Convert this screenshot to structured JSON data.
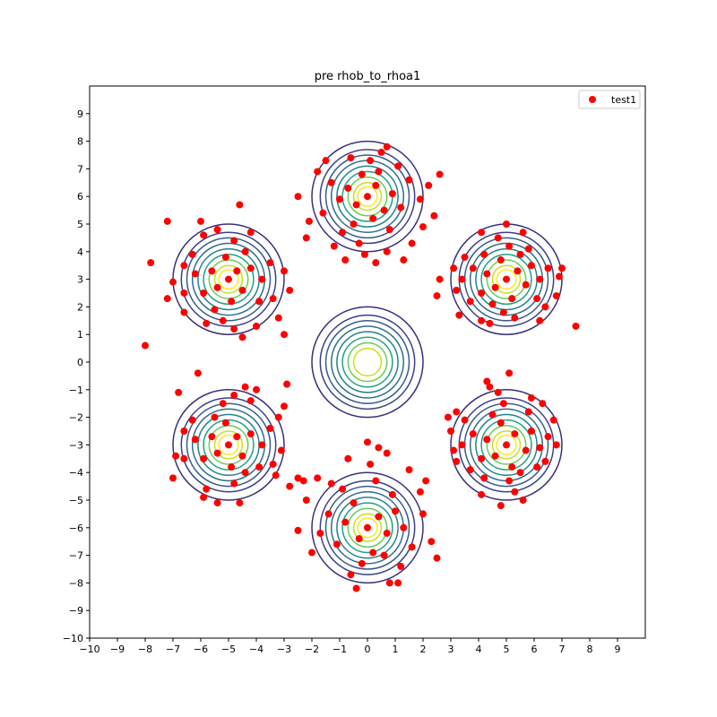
{
  "chart_data": {
    "type": "scatter",
    "title": "pre rhob_to_rhoa1",
    "xlim": [
      -10,
      10
    ],
    "ylim": [
      -10,
      10
    ],
    "x_ticks": [
      -10,
      -9,
      -8,
      -7,
      -6,
      -5,
      -4,
      -3,
      -2,
      -1,
      0,
      1,
      2,
      3,
      4,
      5,
      6,
      7,
      8,
      9
    ],
    "y_ticks": [
      -10,
      -9,
      -8,
      -7,
      -6,
      -5,
      -4,
      -3,
      -2,
      -1,
      0,
      1,
      2,
      3,
      4,
      5,
      6,
      7,
      8,
      9
    ],
    "grid": false,
    "legend": {
      "placement": "top-right",
      "entries": [
        "test1"
      ]
    },
    "contour_sets": [
      {
        "center": [
          0,
          0
        ],
        "radii": [
          2.0,
          1.7,
          1.5,
          1.3,
          1.1,
          0.9,
          0.7,
          0.5
        ],
        "colors": [
          "#3b2f7a",
          "#3a3f8a",
          "#355a8c",
          "#2f6e8c",
          "#26828e",
          "#1fa187",
          "#6ccd5a",
          "#c8e020"
        ]
      },
      {
        "center": [
          0,
          6
        ],
        "radii": [
          2.0,
          1.7,
          1.5,
          1.3,
          1.1,
          0.9,
          0.7,
          0.5,
          0.35
        ],
        "colors": [
          "#3b2f7a",
          "#3a3f8a",
          "#355a8c",
          "#2f6e8c",
          "#26828e",
          "#1fa187",
          "#6ccd5a",
          "#c8e020",
          "#fde725"
        ]
      },
      {
        "center": [
          0,
          -6
        ],
        "radii": [
          2.0,
          1.7,
          1.5,
          1.3,
          1.1,
          0.9,
          0.7,
          0.5,
          0.35
        ],
        "colors": [
          "#3b2f7a",
          "#3a3f8a",
          "#355a8c",
          "#2f6e8c",
          "#26828e",
          "#1fa187",
          "#6ccd5a",
          "#c8e020",
          "#fde725"
        ]
      },
      {
        "center": [
          5,
          3
        ],
        "radii": [
          2.0,
          1.7,
          1.5,
          1.3,
          1.1,
          0.9,
          0.7,
          0.5,
          0.35
        ],
        "colors": [
          "#3b2f7a",
          "#3a3f8a",
          "#355a8c",
          "#2f6e8c",
          "#26828e",
          "#1fa187",
          "#6ccd5a",
          "#c8e020",
          "#fde725"
        ]
      },
      {
        "center": [
          5,
          -3
        ],
        "radii": [
          2.0,
          1.7,
          1.5,
          1.3,
          1.1,
          0.9,
          0.7,
          0.5,
          0.35
        ],
        "colors": [
          "#3b2f7a",
          "#3a3f8a",
          "#355a8c",
          "#2f6e8c",
          "#26828e",
          "#1fa187",
          "#6ccd5a",
          "#c8e020",
          "#fde725"
        ]
      },
      {
        "center": [
          -5,
          3
        ],
        "radii": [
          2.0,
          1.7,
          1.5,
          1.3,
          1.1,
          0.9,
          0.7,
          0.5,
          0.35
        ],
        "colors": [
          "#3b2f7a",
          "#3a3f8a",
          "#355a8c",
          "#2f6e8c",
          "#26828e",
          "#1fa187",
          "#6ccd5a",
          "#c8e020",
          "#fde725"
        ]
      },
      {
        "center": [
          -5,
          -3
        ],
        "radii": [
          2.0,
          1.7,
          1.5,
          1.3,
          1.1,
          0.9,
          0.7,
          0.5,
          0.35
        ],
        "colors": [
          "#3b2f7a",
          "#3a3f8a",
          "#355a8c",
          "#2f6e8c",
          "#26828e",
          "#1fa187",
          "#6ccd5a",
          "#c8e020",
          "#fde725"
        ]
      }
    ],
    "series": [
      {
        "name": "test1",
        "color": "#ff0000",
        "points": [
          [
            0.0,
            6.0
          ],
          [
            0.3,
            6.4
          ],
          [
            -0.4,
            5.7
          ],
          [
            0.6,
            5.5
          ],
          [
            -0.7,
            6.3
          ],
          [
            0.2,
            5.2
          ],
          [
            -0.2,
            6.8
          ],
          [
            0.9,
            6.1
          ],
          [
            -1.0,
            5.9
          ],
          [
            0.4,
            6.9
          ],
          [
            -0.5,
            5.0
          ],
          [
            1.2,
            5.6
          ],
          [
            -1.3,
            6.5
          ],
          [
            0.1,
            7.3
          ],
          [
            0.8,
            4.8
          ],
          [
            -0.9,
            4.7
          ],
          [
            1.5,
            6.6
          ],
          [
            -1.6,
            5.4
          ],
          [
            0.5,
            7.6
          ],
          [
            -0.3,
            4.3
          ],
          [
            1.9,
            5.9
          ],
          [
            -1.8,
            6.9
          ],
          [
            0.7,
            4.0
          ],
          [
            -0.6,
            7.4
          ],
          [
            2.2,
            6.4
          ],
          [
            -2.1,
            5.1
          ],
          [
            1.1,
            7.1
          ],
          [
            -1.2,
            4.2
          ],
          [
            2.0,
            4.9
          ],
          [
            -0.1,
            3.9
          ],
          [
            0.7,
            7.8
          ],
          [
            -2.5,
            6.0
          ],
          [
            1.6,
            4.3
          ],
          [
            -1.5,
            7.3
          ],
          [
            2.4,
            5.3
          ],
          [
            -0.8,
            3.7
          ],
          [
            0.3,
            3.6
          ],
          [
            1.3,
            3.7
          ],
          [
            -2.2,
            4.5
          ],
          [
            2.6,
            6.8
          ],
          [
            0.0,
            -6.0
          ],
          [
            0.4,
            -5.6
          ],
          [
            -0.3,
            -6.4
          ],
          [
            0.7,
            -6.2
          ],
          [
            -0.8,
            -5.8
          ],
          [
            0.2,
            -6.9
          ],
          [
            -0.5,
            -5.1
          ],
          [
            1.0,
            -5.4
          ],
          [
            -1.1,
            -6.6
          ],
          [
            0.6,
            -7.0
          ],
          [
            -0.2,
            -7.3
          ],
          [
            1.3,
            -6.0
          ],
          [
            -1.4,
            -5.5
          ],
          [
            0.9,
            -4.8
          ],
          [
            -0.9,
            -4.6
          ],
          [
            1.6,
            -6.7
          ],
          [
            -1.7,
            -6.2
          ],
          [
            0.3,
            -4.3
          ],
          [
            -0.6,
            -7.7
          ],
          [
            2.0,
            -5.5
          ],
          [
            -2.0,
            -6.9
          ],
          [
            1.2,
            -7.4
          ],
          [
            -1.3,
            -4.4
          ],
          [
            1.9,
            -4.7
          ],
          [
            -2.2,
            -5.0
          ],
          [
            0.1,
            -3.7
          ],
          [
            0.8,
            -8.0
          ],
          [
            -2.5,
            -6.1
          ],
          [
            2.3,
            -6.5
          ],
          [
            -0.4,
            -8.2
          ],
          [
            0.7,
            -3.3
          ],
          [
            -0.7,
            -3.5
          ],
          [
            1.5,
            -3.9
          ],
          [
            2.5,
            -7.1
          ],
          [
            -1.8,
            -4.2
          ],
          [
            0.0,
            -2.9
          ],
          [
            2.1,
            -4.3
          ],
          [
            -2.3,
            -4.3
          ],
          [
            1.1,
            -8.0
          ],
          [
            0.4,
            -3.1
          ],
          [
            5.0,
            3.0
          ],
          [
            5.4,
            3.3
          ],
          [
            4.6,
            2.7
          ],
          [
            5.7,
            2.8
          ],
          [
            4.3,
            3.2
          ],
          [
            5.2,
            2.3
          ],
          [
            4.8,
            3.7
          ],
          [
            5.9,
            3.5
          ],
          [
            4.1,
            2.5
          ],
          [
            5.5,
            3.9
          ],
          [
            4.5,
            2.1
          ],
          [
            6.2,
            3.0
          ],
          [
            3.8,
            3.4
          ],
          [
            5.1,
            4.2
          ],
          [
            4.9,
            1.8
          ],
          [
            6.1,
            2.3
          ],
          [
            3.7,
            2.2
          ],
          [
            5.8,
            4.1
          ],
          [
            4.2,
            3.9
          ],
          [
            6.5,
            3.4
          ],
          [
            3.4,
            3.0
          ],
          [
            5.3,
            1.6
          ],
          [
            4.7,
            4.5
          ],
          [
            6.4,
            2.0
          ],
          [
            3.5,
            3.8
          ],
          [
            6.9,
            3.1
          ],
          [
            3.2,
            2.6
          ],
          [
            5.6,
            4.7
          ],
          [
            4.4,
            1.4
          ],
          [
            6.8,
            2.4
          ],
          [
            3.1,
            3.4
          ],
          [
            5.0,
            5.0
          ],
          [
            4.1,
            4.7
          ],
          [
            7.0,
            3.4
          ],
          [
            3.3,
            1.7
          ],
          [
            6.2,
            1.5
          ],
          [
            2.6,
            3.0
          ],
          [
            7.5,
            1.3
          ],
          [
            2.5,
            2.4
          ],
          [
            4.1,
            1.5
          ],
          [
            5.0,
            -3.0
          ],
          [
            5.3,
            -2.6
          ],
          [
            4.6,
            -3.4
          ],
          [
            5.7,
            -3.2
          ],
          [
            4.3,
            -2.8
          ],
          [
            5.2,
            -3.8
          ],
          [
            4.8,
            -2.2
          ],
          [
            5.9,
            -2.5
          ],
          [
            4.1,
            -3.5
          ],
          [
            5.5,
            -4.0
          ],
          [
            4.5,
            -1.9
          ],
          [
            6.2,
            -3.1
          ],
          [
            3.8,
            -2.6
          ],
          [
            5.1,
            -4.3
          ],
          [
            4.9,
            -1.5
          ],
          [
            6.1,
            -3.8
          ],
          [
            3.7,
            -3.9
          ],
          [
            5.8,
            -1.8
          ],
          [
            4.2,
            -4.2
          ],
          [
            6.5,
            -2.7
          ],
          [
            3.4,
            -3.0
          ],
          [
            5.3,
            -4.7
          ],
          [
            4.7,
            -1.1
          ],
          [
            6.4,
            -3.6
          ],
          [
            3.5,
            -2.1
          ],
          [
            6.8,
            -3.0
          ],
          [
            3.2,
            -3.6
          ],
          [
            5.6,
            -5.0
          ],
          [
            4.4,
            -0.9
          ],
          [
            6.7,
            -2.1
          ],
          [
            3.0,
            -2.5
          ],
          [
            4.8,
            -5.2
          ],
          [
            4.1,
            -4.8
          ],
          [
            5.9,
            -1.3
          ],
          [
            3.2,
            -1.8
          ],
          [
            2.9,
            -2.0
          ],
          [
            3.1,
            -3.2
          ],
          [
            5.1,
            -0.4
          ],
          [
            4.3,
            -0.7
          ],
          [
            6.3,
            -1.5
          ],
          [
            -5.0,
            3.0
          ],
          [
            -4.7,
            3.3
          ],
          [
            -5.4,
            2.7
          ],
          [
            -4.5,
            2.6
          ],
          [
            -5.6,
            3.3
          ],
          [
            -4.9,
            2.2
          ],
          [
            -5.1,
            3.8
          ],
          [
            -4.2,
            3.4
          ],
          [
            -5.9,
            2.5
          ],
          [
            -4.4,
            4.0
          ],
          [
            -5.5,
            1.9
          ],
          [
            -3.8,
            3.0
          ],
          [
            -6.2,
            3.2
          ],
          [
            -4.8,
            4.4
          ],
          [
            -5.2,
            1.5
          ],
          [
            -3.9,
            2.2
          ],
          [
            -6.3,
            3.9
          ],
          [
            -4.2,
            4.7
          ],
          [
            -5.8,
            1.4
          ],
          [
            -3.5,
            3.6
          ],
          [
            -6.6,
            2.5
          ],
          [
            -4.8,
            1.2
          ],
          [
            -5.4,
            4.8
          ],
          [
            -3.4,
            2.3
          ],
          [
            -6.6,
            3.5
          ],
          [
            -4.0,
            1.3
          ],
          [
            -5.9,
            4.6
          ],
          [
            -3.0,
            3.3
          ],
          [
            -7.0,
            2.9
          ],
          [
            -3.2,
            1.6
          ],
          [
            -6.0,
            5.1
          ],
          [
            -4.5,
            0.9
          ],
          [
            -7.2,
            2.3
          ],
          [
            -2.8,
            2.6
          ],
          [
            -6.6,
            1.8
          ],
          [
            -3.0,
            1.0
          ],
          [
            -7.8,
            3.6
          ],
          [
            -7.2,
            5.1
          ],
          [
            -8.0,
            0.6
          ],
          [
            -4.6,
            5.7
          ],
          [
            -5.0,
            -3.0
          ],
          [
            -4.7,
            -2.7
          ],
          [
            -5.4,
            -3.3
          ],
          [
            -4.5,
            -3.4
          ],
          [
            -5.6,
            -2.7
          ],
          [
            -4.9,
            -3.8
          ],
          [
            -5.1,
            -2.2
          ],
          [
            -4.2,
            -2.6
          ],
          [
            -5.9,
            -3.5
          ],
          [
            -4.4,
            -4.0
          ],
          [
            -5.5,
            -2.0
          ],
          [
            -3.8,
            -3.0
          ],
          [
            -6.2,
            -2.8
          ],
          [
            -4.8,
            -4.4
          ],
          [
            -5.2,
            -1.5
          ],
          [
            -3.9,
            -3.8
          ],
          [
            -6.3,
            -2.1
          ],
          [
            -4.2,
            -1.4
          ],
          [
            -5.8,
            -4.6
          ],
          [
            -3.5,
            -2.4
          ],
          [
            -6.6,
            -3.5
          ],
          [
            -4.8,
            -1.2
          ],
          [
            -5.4,
            -5.1
          ],
          [
            -3.4,
            -3.7
          ],
          [
            -6.6,
            -2.5
          ],
          [
            -4.0,
            -1.0
          ],
          [
            -5.9,
            -4.9
          ],
          [
            -3.2,
            -2.0
          ],
          [
            -6.9,
            -3.4
          ],
          [
            -3.3,
            -4.1
          ],
          [
            -4.6,
            -5.1
          ],
          [
            -4.4,
            -0.9
          ],
          [
            -3.0,
            -1.6
          ],
          [
            -6.8,
            -1.1
          ],
          [
            -2.8,
            -4.5
          ],
          [
            -3.1,
            -3.2
          ],
          [
            -2.5,
            -4.2
          ],
          [
            -2.9,
            -0.8
          ],
          [
            -6.1,
            -0.4
          ],
          [
            -7.0,
            -4.2
          ]
        ]
      }
    ]
  }
}
